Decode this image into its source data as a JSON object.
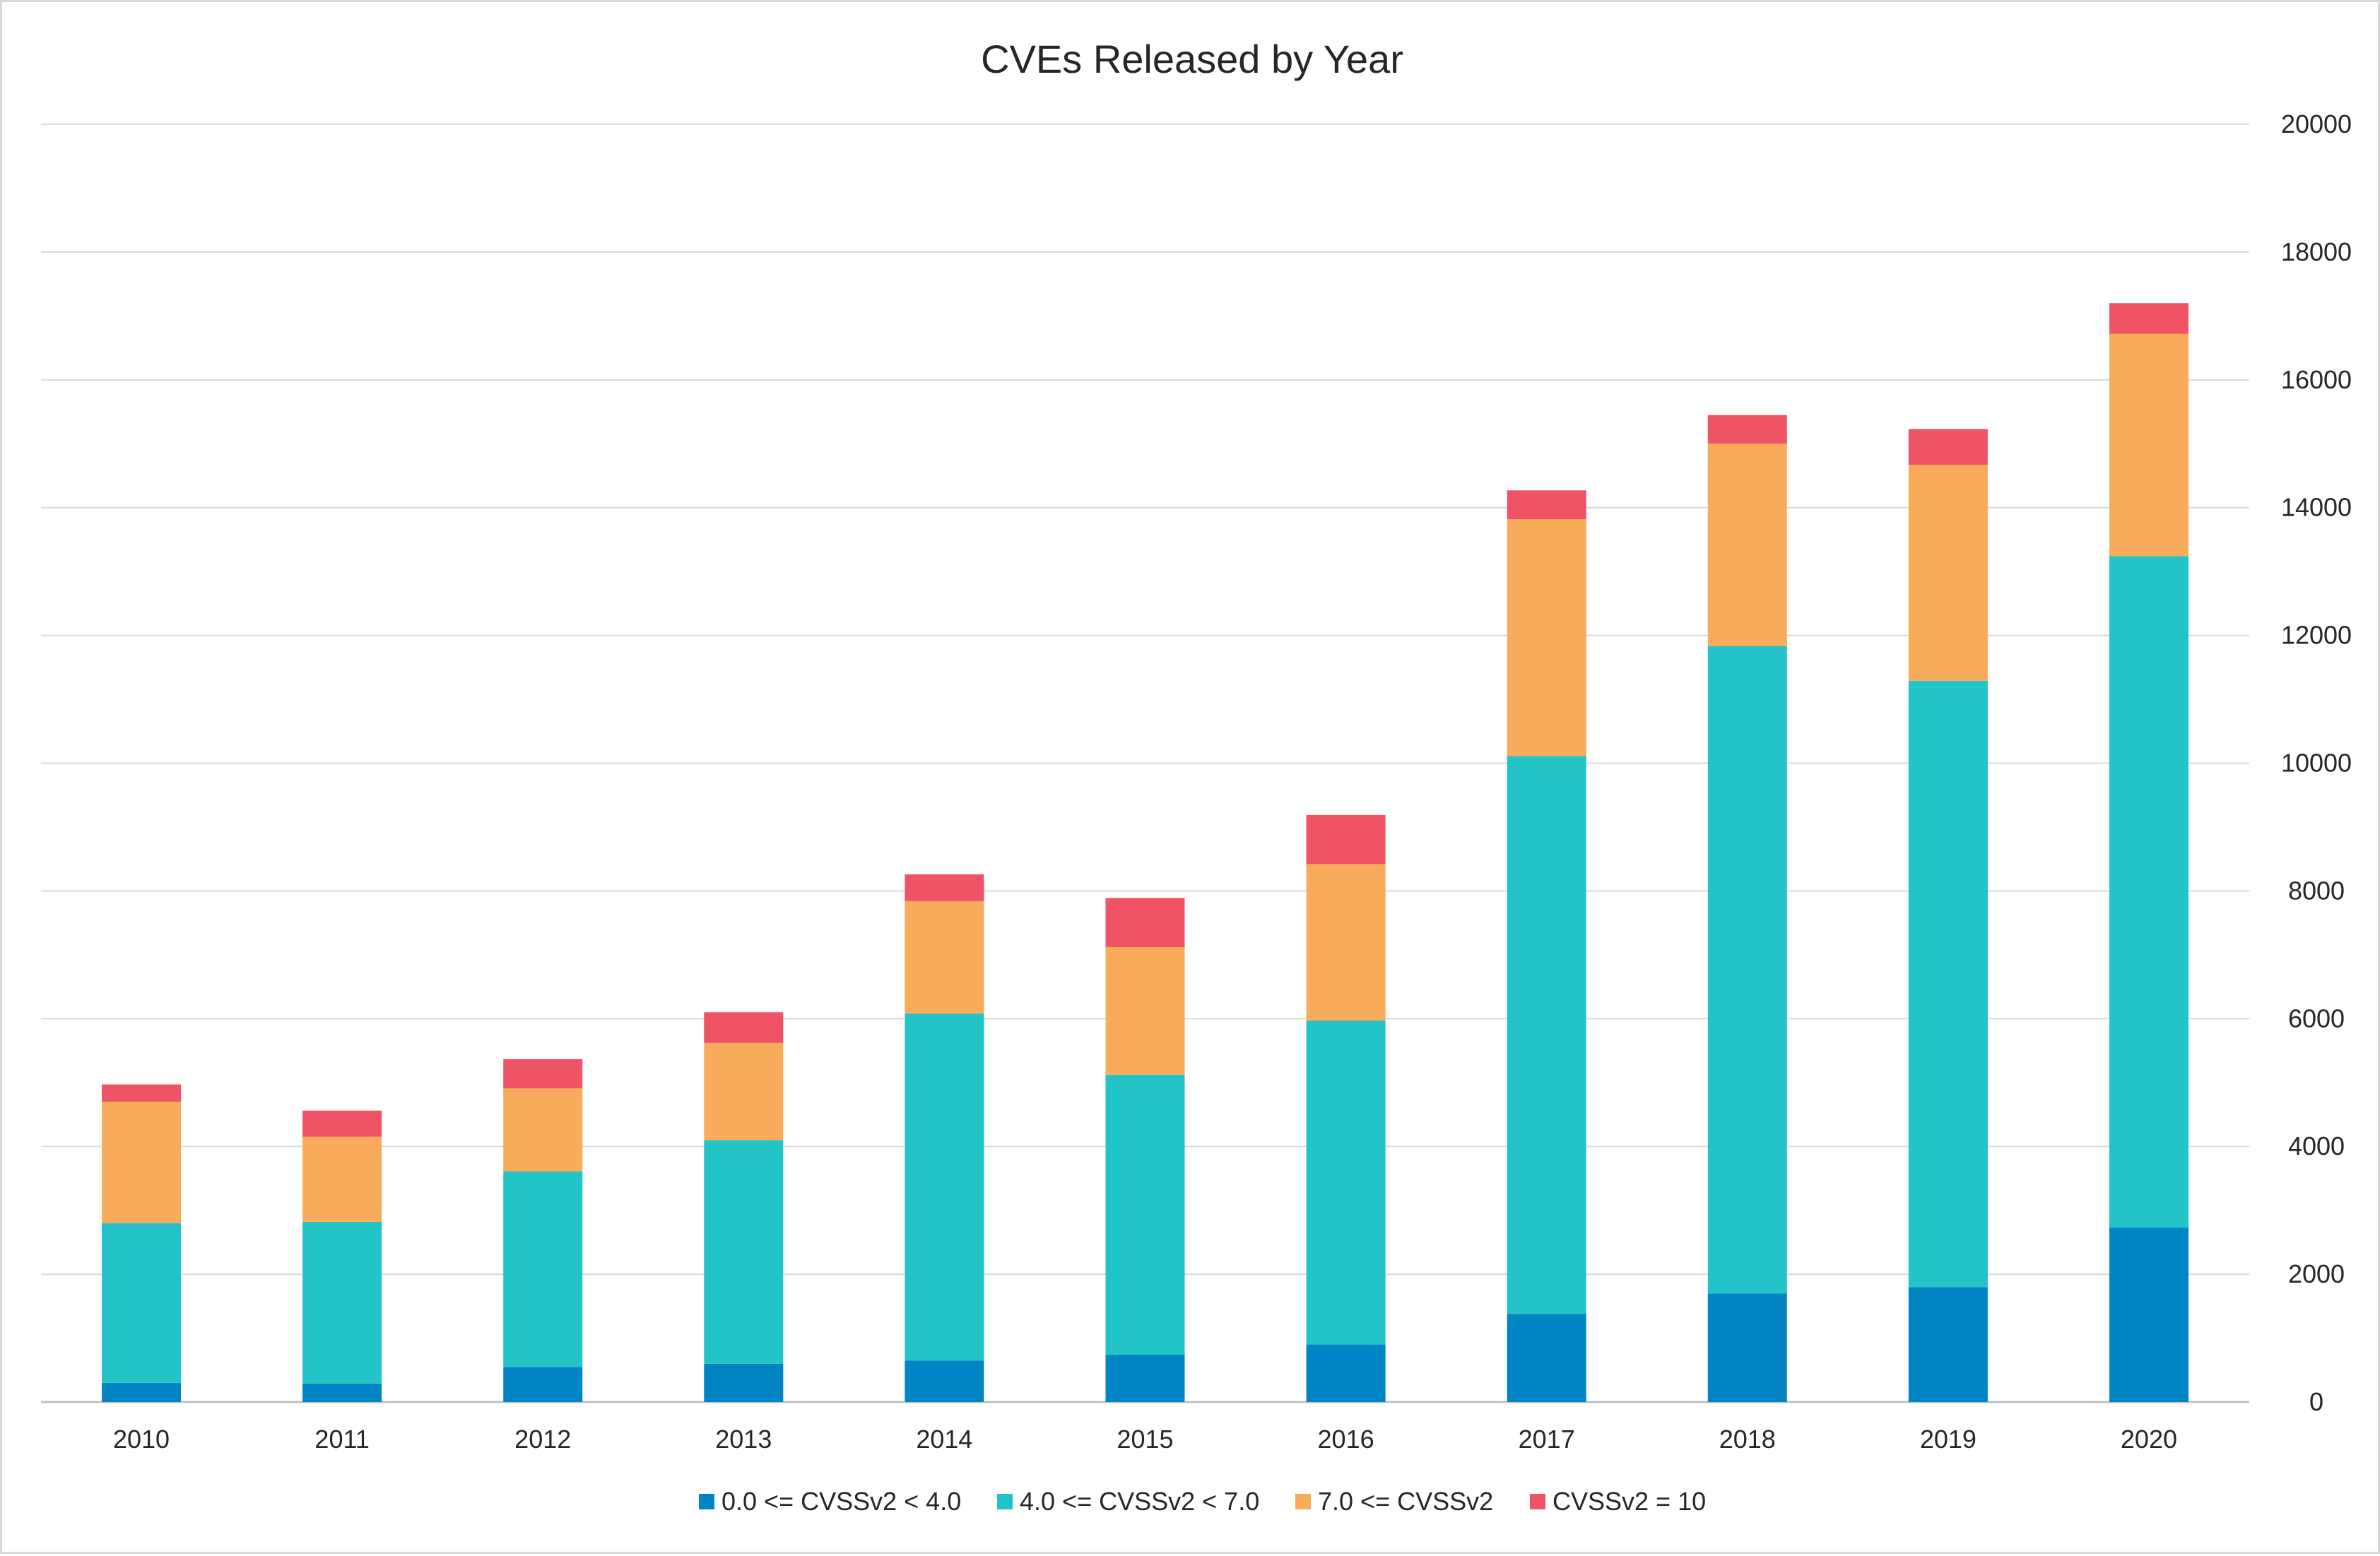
{
  "chart_data": {
    "type": "bar",
    "stacked": true,
    "title": "CVEs Released by Year",
    "xlabel": "",
    "ylabel": "",
    "ylim": [
      0,
      20000
    ],
    "yticks": [
      "0",
      "2000",
      "4000",
      "6000",
      "8000",
      "10000",
      "12000",
      "14000",
      "16000",
      "18000",
      "20000"
    ],
    "y_axis_side": "right",
    "grid": true,
    "legend_position": "bottom",
    "categories": [
      "2010",
      "2011",
      "2012",
      "2013",
      "2014",
      "2015",
      "2016",
      "2017",
      "2018",
      "2019",
      "2020"
    ],
    "series": [
      {
        "name": "0.0 <= CVSSv2 < 4.0",
        "color": "#0084C4",
        "values": [
          300,
          290,
          550,
          600,
          650,
          740,
          900,
          1380,
          1700,
          1800,
          2730
        ]
      },
      {
        "name": "4.0 <= CVSSv2 < 7.0",
        "color": "#22C4C8",
        "values": [
          2500,
          2530,
          3060,
          3500,
          5430,
          4380,
          5070,
          8730,
          10130,
          9490,
          10510
        ]
      },
      {
        "name": "7.0 <= CVSSv2",
        "color": "#F7AB5B",
        "values": [
          1900,
          1330,
          1300,
          1520,
          1760,
          2000,
          2450,
          3710,
          3170,
          3380,
          3480
        ]
      },
      {
        "name": "CVSSv2 = 10",
        "color": "#EE5465",
        "values": [
          270,
          410,
          460,
          480,
          420,
          770,
          770,
          450,
          450,
          560,
          480
        ]
      }
    ]
  }
}
